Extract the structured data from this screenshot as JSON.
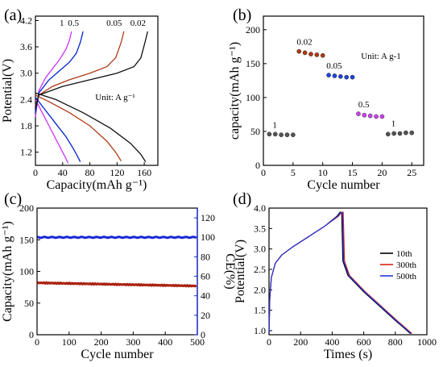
{
  "chart_data": [
    {
      "panel": "(a)",
      "type": "line",
      "xlabel": "Capacity(mAh g⁻¹)",
      "ylabel": "Potential(V)",
      "xlim": [
        0,
        180
      ],
      "ylim": [
        0.9,
        4.3
      ],
      "xticks": [
        0,
        40,
        80,
        120,
        160
      ],
      "yticks": [
        1.2,
        1.8,
        2.4,
        3.0,
        3.6,
        4.2
      ],
      "annotation": "Unit: A g⁻¹",
      "series": [
        {
          "name": "1",
          "color": "#cc33ff",
          "charge": [
            [
              0,
              2.0
            ],
            [
              5,
              2.6
            ],
            [
              15,
              2.9
            ],
            [
              25,
              3.1
            ],
            [
              35,
              3.3
            ],
            [
              45,
              3.55
            ],
            [
              50,
              3.75
            ],
            [
              53,
              3.95
            ]
          ],
          "discharge": [
            [
              0,
              2.4
            ],
            [
              10,
              2.1
            ],
            [
              20,
              1.8
            ],
            [
              30,
              1.5
            ],
            [
              40,
              1.2
            ],
            [
              45,
              1.05
            ],
            [
              48,
              0.95
            ]
          ]
        },
        {
          "name": "0.5",
          "color": "#0022cc",
          "charge": [
            [
              0,
              2.1
            ],
            [
              5,
              2.55
            ],
            [
              20,
              2.85
            ],
            [
              35,
              3.05
            ],
            [
              50,
              3.25
            ],
            [
              60,
              3.45
            ],
            [
              66,
              3.7
            ],
            [
              70,
              3.95
            ]
          ],
          "discharge": [
            [
              0,
              2.45
            ],
            [
              15,
              2.15
            ],
            [
              30,
              1.85
            ],
            [
              45,
              1.55
            ],
            [
              55,
              1.3
            ],
            [
              62,
              1.1
            ],
            [
              66,
              0.98
            ]
          ]
        },
        {
          "name": "0.05",
          "color": "#b03a14",
          "charge": [
            [
              0,
              2.25
            ],
            [
              5,
              2.5
            ],
            [
              25,
              2.7
            ],
            [
              50,
              2.85
            ],
            [
              80,
              3.0
            ],
            [
              105,
              3.15
            ],
            [
              118,
              3.35
            ],
            [
              126,
              3.7
            ],
            [
              130,
              3.95
            ]
          ],
          "discharge": [
            [
              0,
              2.5
            ],
            [
              20,
              2.35
            ],
            [
              50,
              2.1
            ],
            [
              80,
              1.8
            ],
            [
              105,
              1.45
            ],
            [
              118,
              1.2
            ],
            [
              126,
              1.0
            ]
          ]
        },
        {
          "name": "0.02",
          "color": "#111111",
          "charge": [
            [
              0,
              2.2
            ],
            [
              5,
              2.5
            ],
            [
              40,
              2.7
            ],
            [
              80,
              2.85
            ],
            [
              120,
              3.0
            ],
            [
              145,
              3.15
            ],
            [
              155,
              3.35
            ],
            [
              161,
              3.7
            ],
            [
              165,
              3.95
            ]
          ],
          "discharge": [
            [
              0,
              2.55
            ],
            [
              30,
              2.4
            ],
            [
              70,
              2.1
            ],
            [
              110,
              1.75
            ],
            [
              140,
              1.4
            ],
            [
              155,
              1.15
            ],
            [
              162,
              0.98
            ]
          ]
        }
      ]
    },
    {
      "panel": "(b)",
      "type": "scatter",
      "xlabel": "Cycle number",
      "ylabel": "capacity(mAh g⁻¹)",
      "xlim": [
        0,
        27
      ],
      "ylim": [
        0,
        220
      ],
      "xticks": [
        0,
        5,
        10,
        15,
        20,
        25
      ],
      "yticks": [
        0,
        50,
        100,
        150,
        200
      ],
      "annotation": "Unit: A g-1",
      "groups": [
        {
          "label": "1",
          "color": "#555555",
          "x": [
            1,
            2,
            3,
            4,
            5
          ],
          "y": [
            46,
            46,
            45,
            45,
            45
          ]
        },
        {
          "label": "0.02",
          "color": "#b03a14",
          "x": [
            6,
            7,
            8,
            9,
            10
          ],
          "y": [
            168,
            166,
            164,
            163,
            162
          ]
        },
        {
          "label": "0.05",
          "color": "#2244dd",
          "x": [
            11,
            12,
            13,
            14,
            15
          ],
          "y": [
            133,
            132,
            131,
            130,
            130
          ]
        },
        {
          "label": "0.5",
          "color": "#cc44ee",
          "x": [
            16,
            17,
            18,
            19,
            20
          ],
          "y": [
            76,
            74,
            73,
            72,
            72
          ]
        },
        {
          "label": "1",
          "color": "#555555",
          "x": [
            21,
            22,
            23,
            24,
            25
          ],
          "y": [
            46,
            47,
            47,
            48,
            48
          ]
        }
      ]
    },
    {
      "panel": "(c)",
      "type": "scatter",
      "xlabel": "Cycle number",
      "ylabel": "Capacity(mAh g⁻¹)",
      "ylabel_right": "CE(%)",
      "xlim": [
        0,
        500
      ],
      "ylim": [
        0,
        200
      ],
      "ylim_right": [
        0,
        130
      ],
      "xticks": [
        0,
        100,
        200,
        300,
        400,
        500
      ],
      "yticks": [
        0,
        50,
        100,
        150,
        200
      ],
      "yticks_right": [
        0,
        20,
        40,
        60,
        80,
        100,
        120
      ],
      "series": [
        {
          "name": "Capacity",
          "color": "#aa2211",
          "x_range": [
            1,
            500
          ],
          "start": 82,
          "end": 77
        },
        {
          "name": "CE",
          "color": "#1a2bd6",
          "x_range": [
            1,
            500
          ],
          "start": 100,
          "end": 100
        }
      ]
    },
    {
      "panel": "(d)",
      "type": "line",
      "xlabel": "Times (s)",
      "ylabel": "Potential(V)",
      "xlim": [
        0,
        1000
      ],
      "ylim": [
        0.9,
        4.0
      ],
      "xticks": [
        0,
        200,
        400,
        600,
        800,
        1000
      ],
      "yticks": [
        1.0,
        1.5,
        2.0,
        2.5,
        3.0,
        3.5,
        4.0
      ],
      "legend_position": "right",
      "series": [
        {
          "name": "10th",
          "color": "#000000",
          "points": [
            [
              0,
              0.95
            ],
            [
              5,
              1.8
            ],
            [
              15,
              2.3
            ],
            [
              40,
              2.65
            ],
            [
              80,
              2.85
            ],
            [
              150,
              3.05
            ],
            [
              250,
              3.3
            ],
            [
              350,
              3.55
            ],
            [
              430,
              3.8
            ],
            [
              450,
              3.9
            ],
            [
              460,
              3.9
            ],
            [
              468,
              2.7
            ],
            [
              500,
              2.35
            ],
            [
              600,
              1.95
            ],
            [
              700,
              1.6
            ],
            [
              800,
              1.25
            ],
            [
              860,
              1.05
            ],
            [
              895,
              0.93
            ]
          ]
        },
        {
          "name": "300th",
          "color": "#dd2211",
          "points": [
            [
              0,
              0.95
            ],
            [
              5,
              1.8
            ],
            [
              15,
              2.3
            ],
            [
              40,
              2.65
            ],
            [
              80,
              2.85
            ],
            [
              150,
              3.05
            ],
            [
              250,
              3.3
            ],
            [
              350,
              3.55
            ],
            [
              440,
              3.8
            ],
            [
              460,
              3.9
            ],
            [
              470,
              3.9
            ],
            [
              478,
              2.7
            ],
            [
              510,
              2.35
            ],
            [
              610,
              1.95
            ],
            [
              710,
              1.6
            ],
            [
              810,
              1.25
            ],
            [
              870,
              1.05
            ],
            [
              905,
              0.93
            ]
          ]
        },
        {
          "name": "500th",
          "color": "#2233dd",
          "points": [
            [
              0,
              0.95
            ],
            [
              5,
              1.8
            ],
            [
              15,
              2.3
            ],
            [
              40,
              2.65
            ],
            [
              80,
              2.85
            ],
            [
              150,
              3.05
            ],
            [
              250,
              3.3
            ],
            [
              350,
              3.55
            ],
            [
              435,
              3.8
            ],
            [
              455,
              3.9
            ],
            [
              465,
              3.9
            ],
            [
              473,
              2.7
            ],
            [
              505,
              2.35
            ],
            [
              605,
              1.95
            ],
            [
              705,
              1.6
            ],
            [
              805,
              1.25
            ],
            [
              865,
              1.05
            ],
            [
              900,
              0.93
            ]
          ]
        }
      ]
    }
  ]
}
